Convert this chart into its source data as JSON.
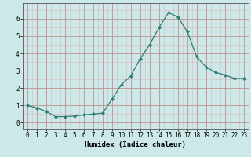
{
  "x": [
    0,
    1,
    2,
    3,
    4,
    5,
    6,
    7,
    8,
    9,
    10,
    11,
    12,
    13,
    14,
    15,
    16,
    17,
    18,
    19,
    20,
    21,
    22,
    23
  ],
  "y": [
    1.0,
    0.85,
    0.65,
    0.35,
    0.35,
    0.38,
    0.45,
    0.5,
    0.55,
    1.35,
    2.2,
    2.7,
    3.7,
    4.5,
    5.5,
    6.35,
    6.1,
    5.25,
    3.8,
    3.2,
    2.9,
    2.75,
    2.55,
    2.55
  ],
  "line_color": "#2e7d72",
  "marker": "D",
  "marker_size": 2.2,
  "bg_color": "#cce8e8",
  "grid_major_color": "#c09090",
  "grid_minor_color": "#ddbaba",
  "xlabel": "Humidex (Indice chaleur)",
  "xlabel_fontsize": 6.5,
  "tick_fontsize": 5.5,
  "xlim": [
    -0.5,
    23.5
  ],
  "ylim": [
    -0.35,
    6.9
  ],
  "yticks": [
    0,
    1,
    2,
    3,
    4,
    5,
    6
  ],
  "xticks": [
    0,
    1,
    2,
    3,
    4,
    5,
    6,
    7,
    8,
    9,
    10,
    11,
    12,
    13,
    14,
    15,
    16,
    17,
    18,
    19,
    20,
    21,
    22,
    23
  ]
}
